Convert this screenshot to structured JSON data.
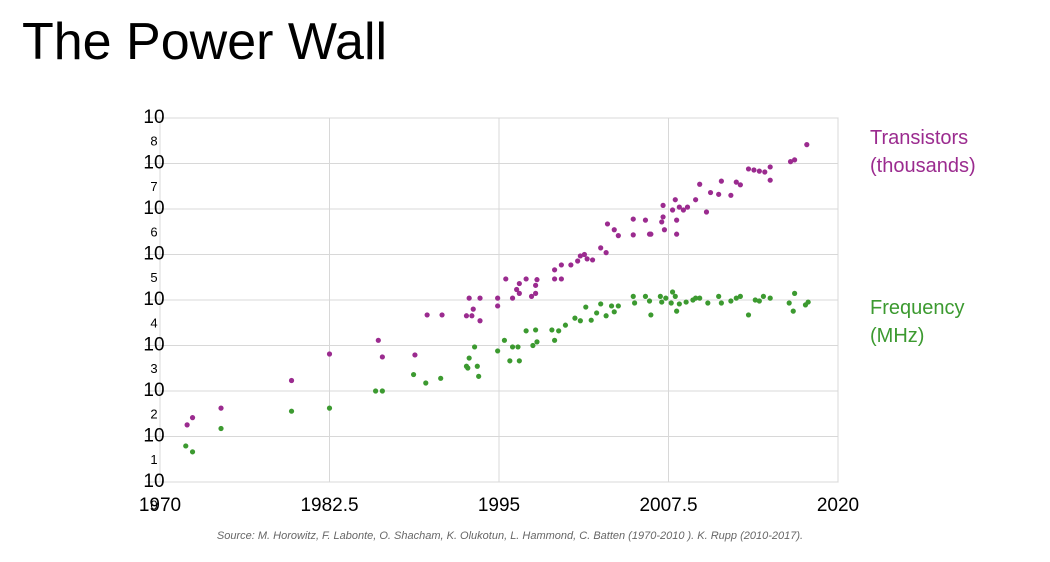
{
  "title": "The Power Wall",
  "source": "Source: M. Horowitz, F. Labonte, O. Shacham, K. Olukotun, L. Hammond, C. Batten (1970-2010 ). K. Rupp (2010-2017).",
  "chart_data": {
    "type": "scatter",
    "yscale": "log",
    "grid": true,
    "xlim": [
      1970,
      2020
    ],
    "xticks": [
      1970,
      1982.5,
      1995,
      2007.5,
      2020
    ],
    "ylim": [
      1,
      100000000
    ],
    "yticks": [
      {
        "value": 100000000,
        "label": "10",
        "exponent": "8"
      },
      {
        "value": 10000000,
        "label": "10",
        "exponent": "7"
      },
      {
        "value": 1000000,
        "label": "10",
        "exponent": "6"
      },
      {
        "value": 100000,
        "label": "10",
        "exponent": "5"
      },
      {
        "value": 10000,
        "label": "10",
        "exponent": "4"
      },
      {
        "value": 1000,
        "label": "10",
        "exponent": "3"
      },
      {
        "value": 100,
        "label": "10",
        "exponent": "2"
      },
      {
        "value": 10,
        "label": "10",
        "exponent": "1"
      },
      {
        "value": 1,
        "label": "10",
        "exponent": "0"
      }
    ],
    "series": [
      {
        "name": "Transistors (thousands)",
        "color": "#9b2b8f",
        "x": [
          1972.0,
          1972.4,
          1974.5,
          1979.7,
          1982.5,
          1986.1,
          1986.4,
          1988.8,
          1989.7,
          1990.8,
          1992.6,
          1992.8,
          1993.0,
          1993.1,
          1993.6,
          1993.6,
          1994.9,
          1994.9,
          1995.5,
          1996.0,
          1996.3,
          1996.5,
          1996.5,
          1997.0,
          1997.4,
          1997.7,
          1997.8,
          1997.7,
          1999.1,
          1999.1,
          1999.6,
          1999.6,
          2000.3,
          2000.8,
          2001.0,
          2001.3,
          2001.5,
          2001.9,
          2002.5,
          2002.9,
          2003.0,
          2003.5,
          2003.8,
          2004.9,
          2004.9,
          2005.8,
          2006.1,
          2006.2,
          2007.0,
          2007.1,
          2007.1,
          2007.2,
          2007.8,
          2008.0,
          2008.1,
          2008.1,
          2008.3,
          2008.6,
          2008.9,
          2009.5,
          2009.8,
          2010.3,
          2010.6,
          2011.2,
          2011.4,
          2012.1,
          2012.5,
          2012.8,
          2013.4,
          2013.8,
          2014.2,
          2014.6,
          2015.0,
          2015.0,
          2016.5,
          2016.8,
          2017.7
        ],
        "values": [
          18,
          26,
          42,
          170,
          650,
          1300,
          560,
          620,
          4700,
          4700,
          4500,
          11000,
          4500,
          6300,
          3500,
          11000,
          11000,
          7400,
          29000,
          11000,
          17000,
          23000,
          14000,
          29000,
          12000,
          21000,
          28000,
          14000,
          46000,
          29000,
          29000,
          59000,
          59000,
          72000,
          93000,
          100000,
          80000,
          76000,
          140000,
          110000,
          470000,
          350000,
          260000,
          600000,
          270000,
          570000,
          280000,
          280000,
          520000,
          670000,
          1200000,
          350000,
          950000,
          1600000,
          570000,
          280000,
          1100000,
          950000,
          1100000,
          1600000,
          3500000,
          860000,
          2300000,
          2100000,
          4100000,
          2000000,
          3900000,
          3400000,
          7600000,
          7200000,
          6800000,
          6500000,
          8400000,
          4300000,
          11000000,
          12000000,
          26000000
        ]
      },
      {
        "name": "Frequency (MHz)",
        "color": "#3c9a30",
        "x": [
          1971.9,
          1972.4,
          1974.5,
          1979.7,
          1982.5,
          1985.9,
          1986.4,
          1988.7,
          1989.6,
          1990.7,
          1992.6,
          1992.7,
          1992.8,
          1993.2,
          1993.4,
          1993.5,
          1994.9,
          1995.4,
          1995.8,
          1996.0,
          1996.4,
          1996.5,
          1997.0,
          1997.5,
          1997.7,
          1997.8,
          1998.9,
          1999.1,
          1999.4,
          1999.9,
          2000.6,
          2001.0,
          2001.4,
          2001.8,
          2002.2,
          2002.5,
          2002.9,
          2003.3,
          2003.5,
          2003.8,
          2004.9,
          2005.0,
          2005.8,
          2006.1,
          2006.2,
          2006.9,
          2007.0,
          2007.3,
          2007.7,
          2007.8,
          2008.0,
          2008.1,
          2008.3,
          2008.8,
          2009.3,
          2009.5,
          2009.8,
          2010.4,
          2011.2,
          2011.4,
          2012.1,
          2012.5,
          2012.8,
          2013.4,
          2013.9,
          2014.2,
          2014.5,
          2015.0,
          2016.4,
          2016.7,
          2016.8,
          2017.6,
          2017.8
        ],
        "values": [
          6.2,
          4.6,
          15,
          36,
          42,
          100,
          100,
          230,
          150,
          190,
          350,
          320,
          530,
          930,
          350,
          210,
          760,
          1300,
          460,
          930,
          930,
          460,
          2100,
          1000,
          2200,
          1200,
          2200,
          1300,
          2100,
          2800,
          4000,
          3500,
          7000,
          3600,
          5200,
          8200,
          4500,
          7400,
          5500,
          7400,
          12000,
          8600,
          12000,
          9500,
          4700,
          12000,
          9000,
          11000,
          8600,
          15000,
          12000,
          5700,
          8200,
          9000,
          10000,
          11000,
          11000,
          8600,
          12000,
          8600,
          9500,
          11000,
          12000,
          4700,
          10000,
          9500,
          12000,
          11000,
          8600,
          5700,
          14000,
          7800,
          9000
        ]
      }
    ]
  }
}
